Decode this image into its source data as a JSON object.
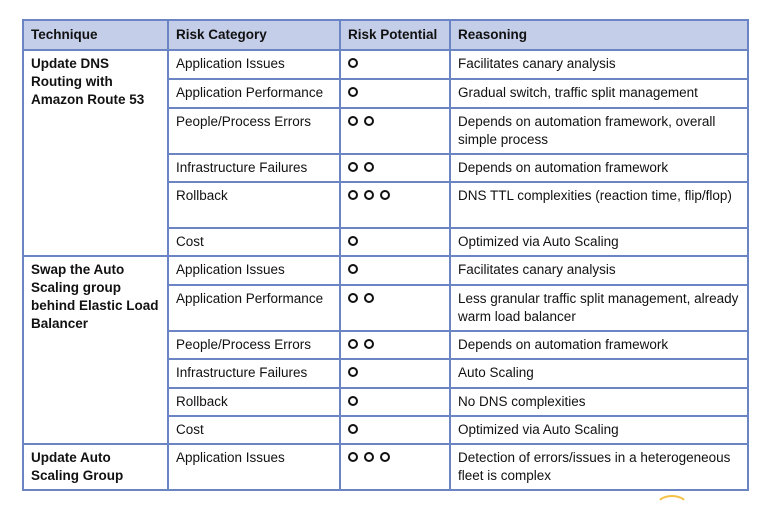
{
  "headers": [
    "Technique",
    "Risk Category",
    "Risk Potential",
    "Reasoning"
  ],
  "groups": [
    {
      "technique": "Update DNS Routing with Amazon Route 53",
      "rows": [
        {
          "category": "Application Issues",
          "potential": 1,
          "reasoning": "Facilitates canary analysis"
        },
        {
          "category": "Application Performance",
          "potential": 1,
          "reasoning": "Gradual switch, traffic split management"
        },
        {
          "category": "People/Process Errors",
          "potential": 2,
          "reasoning": "Depends on automation framework, overall simple process"
        },
        {
          "category": "Infrastructure Failures",
          "potential": 2,
          "reasoning": "Depends on automation framework"
        },
        {
          "category": "Rollback",
          "potential": 3,
          "reasoning": "DNS TTL complexities (reaction time, flip/flop)"
        },
        {
          "category": "Cost",
          "potential": 1,
          "reasoning": "Optimized via Auto Scaling"
        }
      ]
    },
    {
      "technique": "Swap the Auto Scaling group behind Elastic Load Balancer",
      "rows": [
        {
          "category": "Application Issues",
          "potential": 1,
          "reasoning": "Facilitates canary analysis"
        },
        {
          "category": "Application Performance",
          "potential": 2,
          "reasoning": "Less granular traffic split management, already warm load balancer"
        },
        {
          "category": "People/Process Errors",
          "potential": 2,
          "reasoning": "Depends on automation framework"
        },
        {
          "category": "Infrastructure Failures",
          "potential": 1,
          "reasoning": "Auto Scaling"
        },
        {
          "category": "Rollback",
          "potential": 1,
          "reasoning": "No DNS complexities"
        },
        {
          "category": "Cost",
          "potential": 1,
          "reasoning": "Optimized via Auto Scaling"
        }
      ]
    },
    {
      "technique": "Update Auto Scaling Group",
      "rows": [
        {
          "category": "Application Issues",
          "potential": 3,
          "reasoning": "Detection of errors/issues in a heterogeneous fleet is complex"
        }
      ]
    }
  ]
}
